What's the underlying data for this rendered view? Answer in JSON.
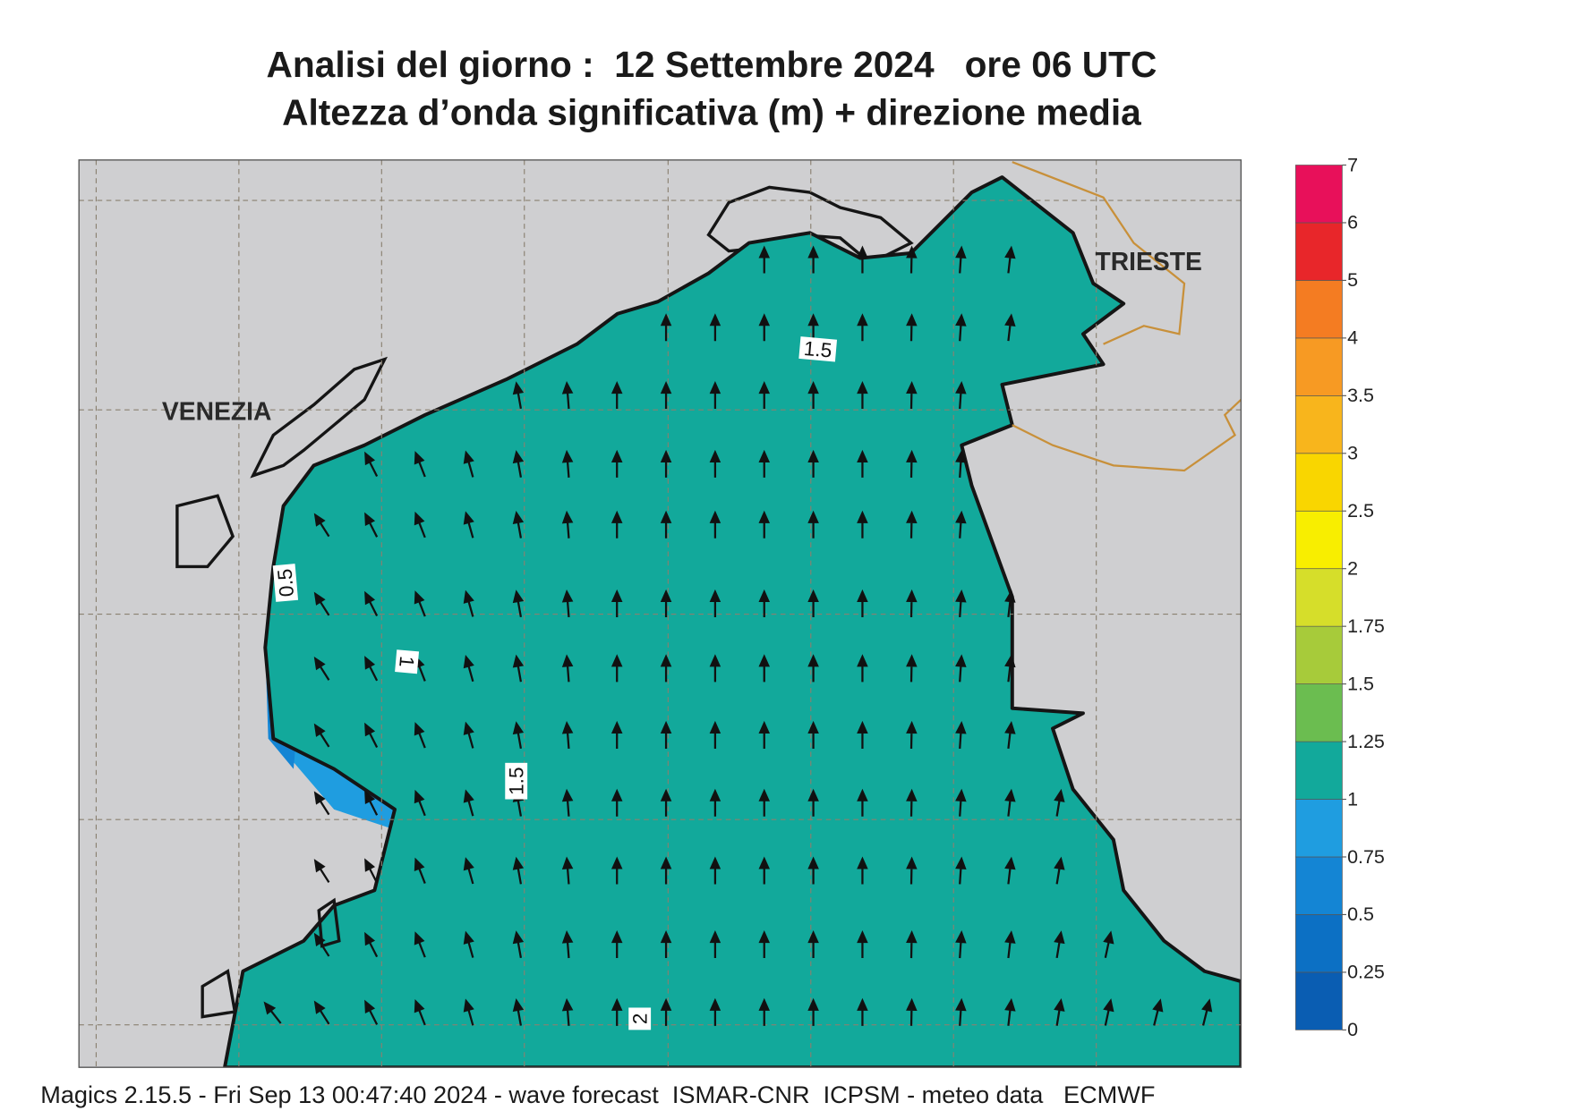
{
  "header": {
    "title": "Analisi del giorno :  12 Settembre 2024   ore 06 UTC",
    "subtitle": "Altezza d’onda significativa (m) + direzione media"
  },
  "map": {
    "places": [
      "VENEZIA",
      "TRIESTE"
    ],
    "contour_labels": [
      1.5,
      0.5,
      1,
      1.5,
      2
    ]
  },
  "legend": {
    "levels": [
      0,
      0.25,
      0.5,
      0.75,
      1,
      1.25,
      1.5,
      1.75,
      2,
      2.5,
      3,
      3.5,
      4,
      5,
      6,
      7
    ],
    "colors": [
      "#0a5db2",
      "#0c70c4",
      "#1485d4",
      "#1f9de0",
      "#12a99b",
      "#6bbd50",
      "#a7cb3a",
      "#d6de2a",
      "#f8ee00",
      "#f9d600",
      "#f8b51c",
      "#f79a23",
      "#f47c22",
      "#e8262a",
      "#e8105a"
    ]
  },
  "footer": "Magics 2.15.5 - Fri Sep 13 00:47:40 2024 - wave forecast  ISMAR-CNR  ICPSM - meteo data   ECMWF"
}
